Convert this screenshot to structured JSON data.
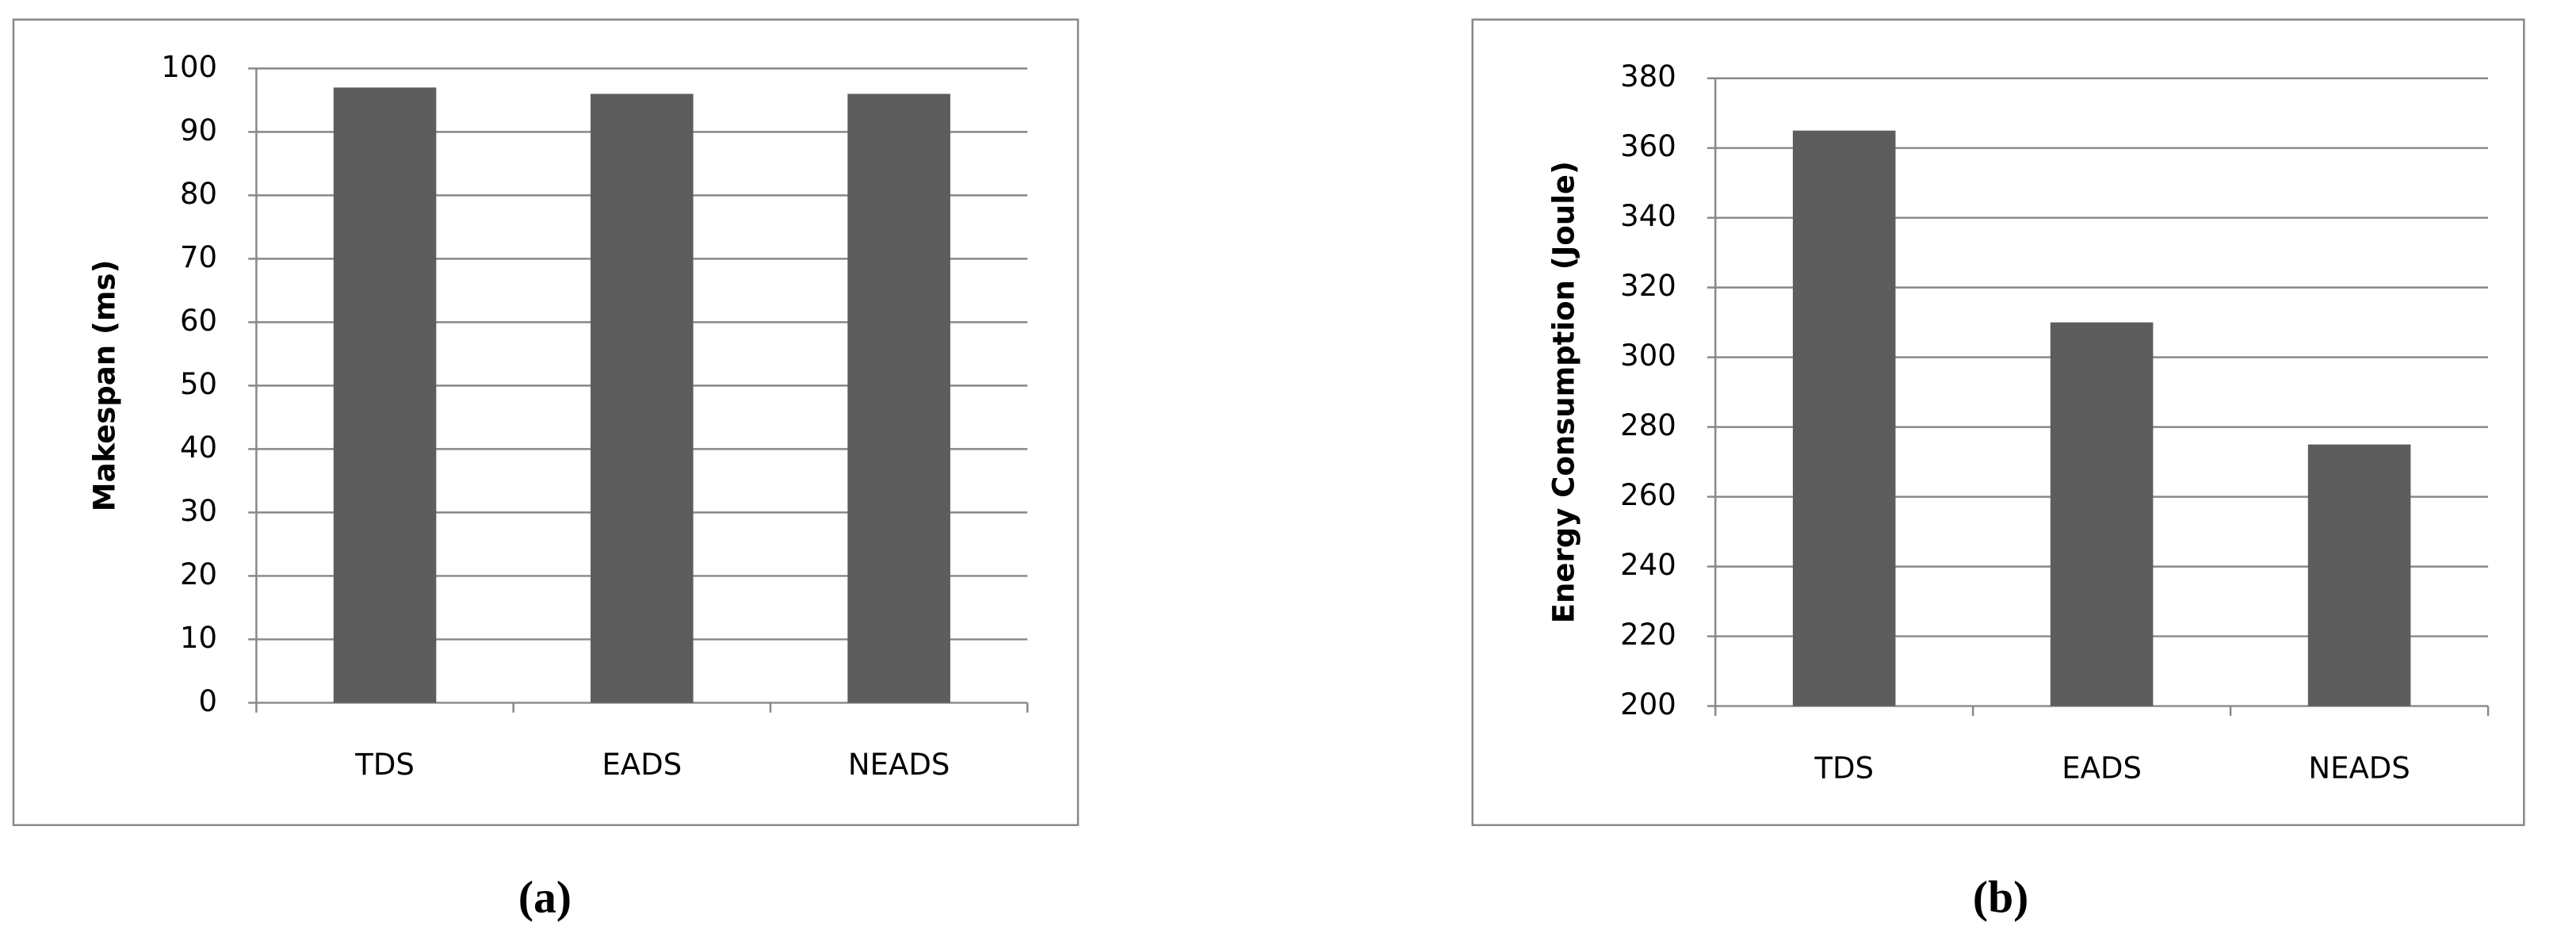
{
  "chart_data": [
    {
      "type": "bar",
      "y_label": "Makespan (ms)",
      "caption": "(a)",
      "categories": [
        "TDS",
        "EADS",
        "NEADS"
      ],
      "values": [
        97,
        96,
        96
      ],
      "color": "#5d5d5d",
      "ylim": [
        0,
        100
      ],
      "yticks": [
        0,
        10,
        20,
        30,
        40,
        50,
        60,
        70,
        80,
        90,
        100
      ],
      "grid": true
    },
    {
      "type": "bar",
      "y_label": "Energy Consumption (Joule)",
      "caption": "(b)",
      "categories": [
        "TDS",
        "EADS",
        "NEADS"
      ],
      "values": [
        365,
        310,
        275
      ],
      "color": "#5d5d5d",
      "ylim": [
        200,
        380
      ],
      "yticks": [
        200,
        220,
        240,
        260,
        280,
        300,
        320,
        340,
        360,
        380
      ],
      "grid": true
    }
  ]
}
